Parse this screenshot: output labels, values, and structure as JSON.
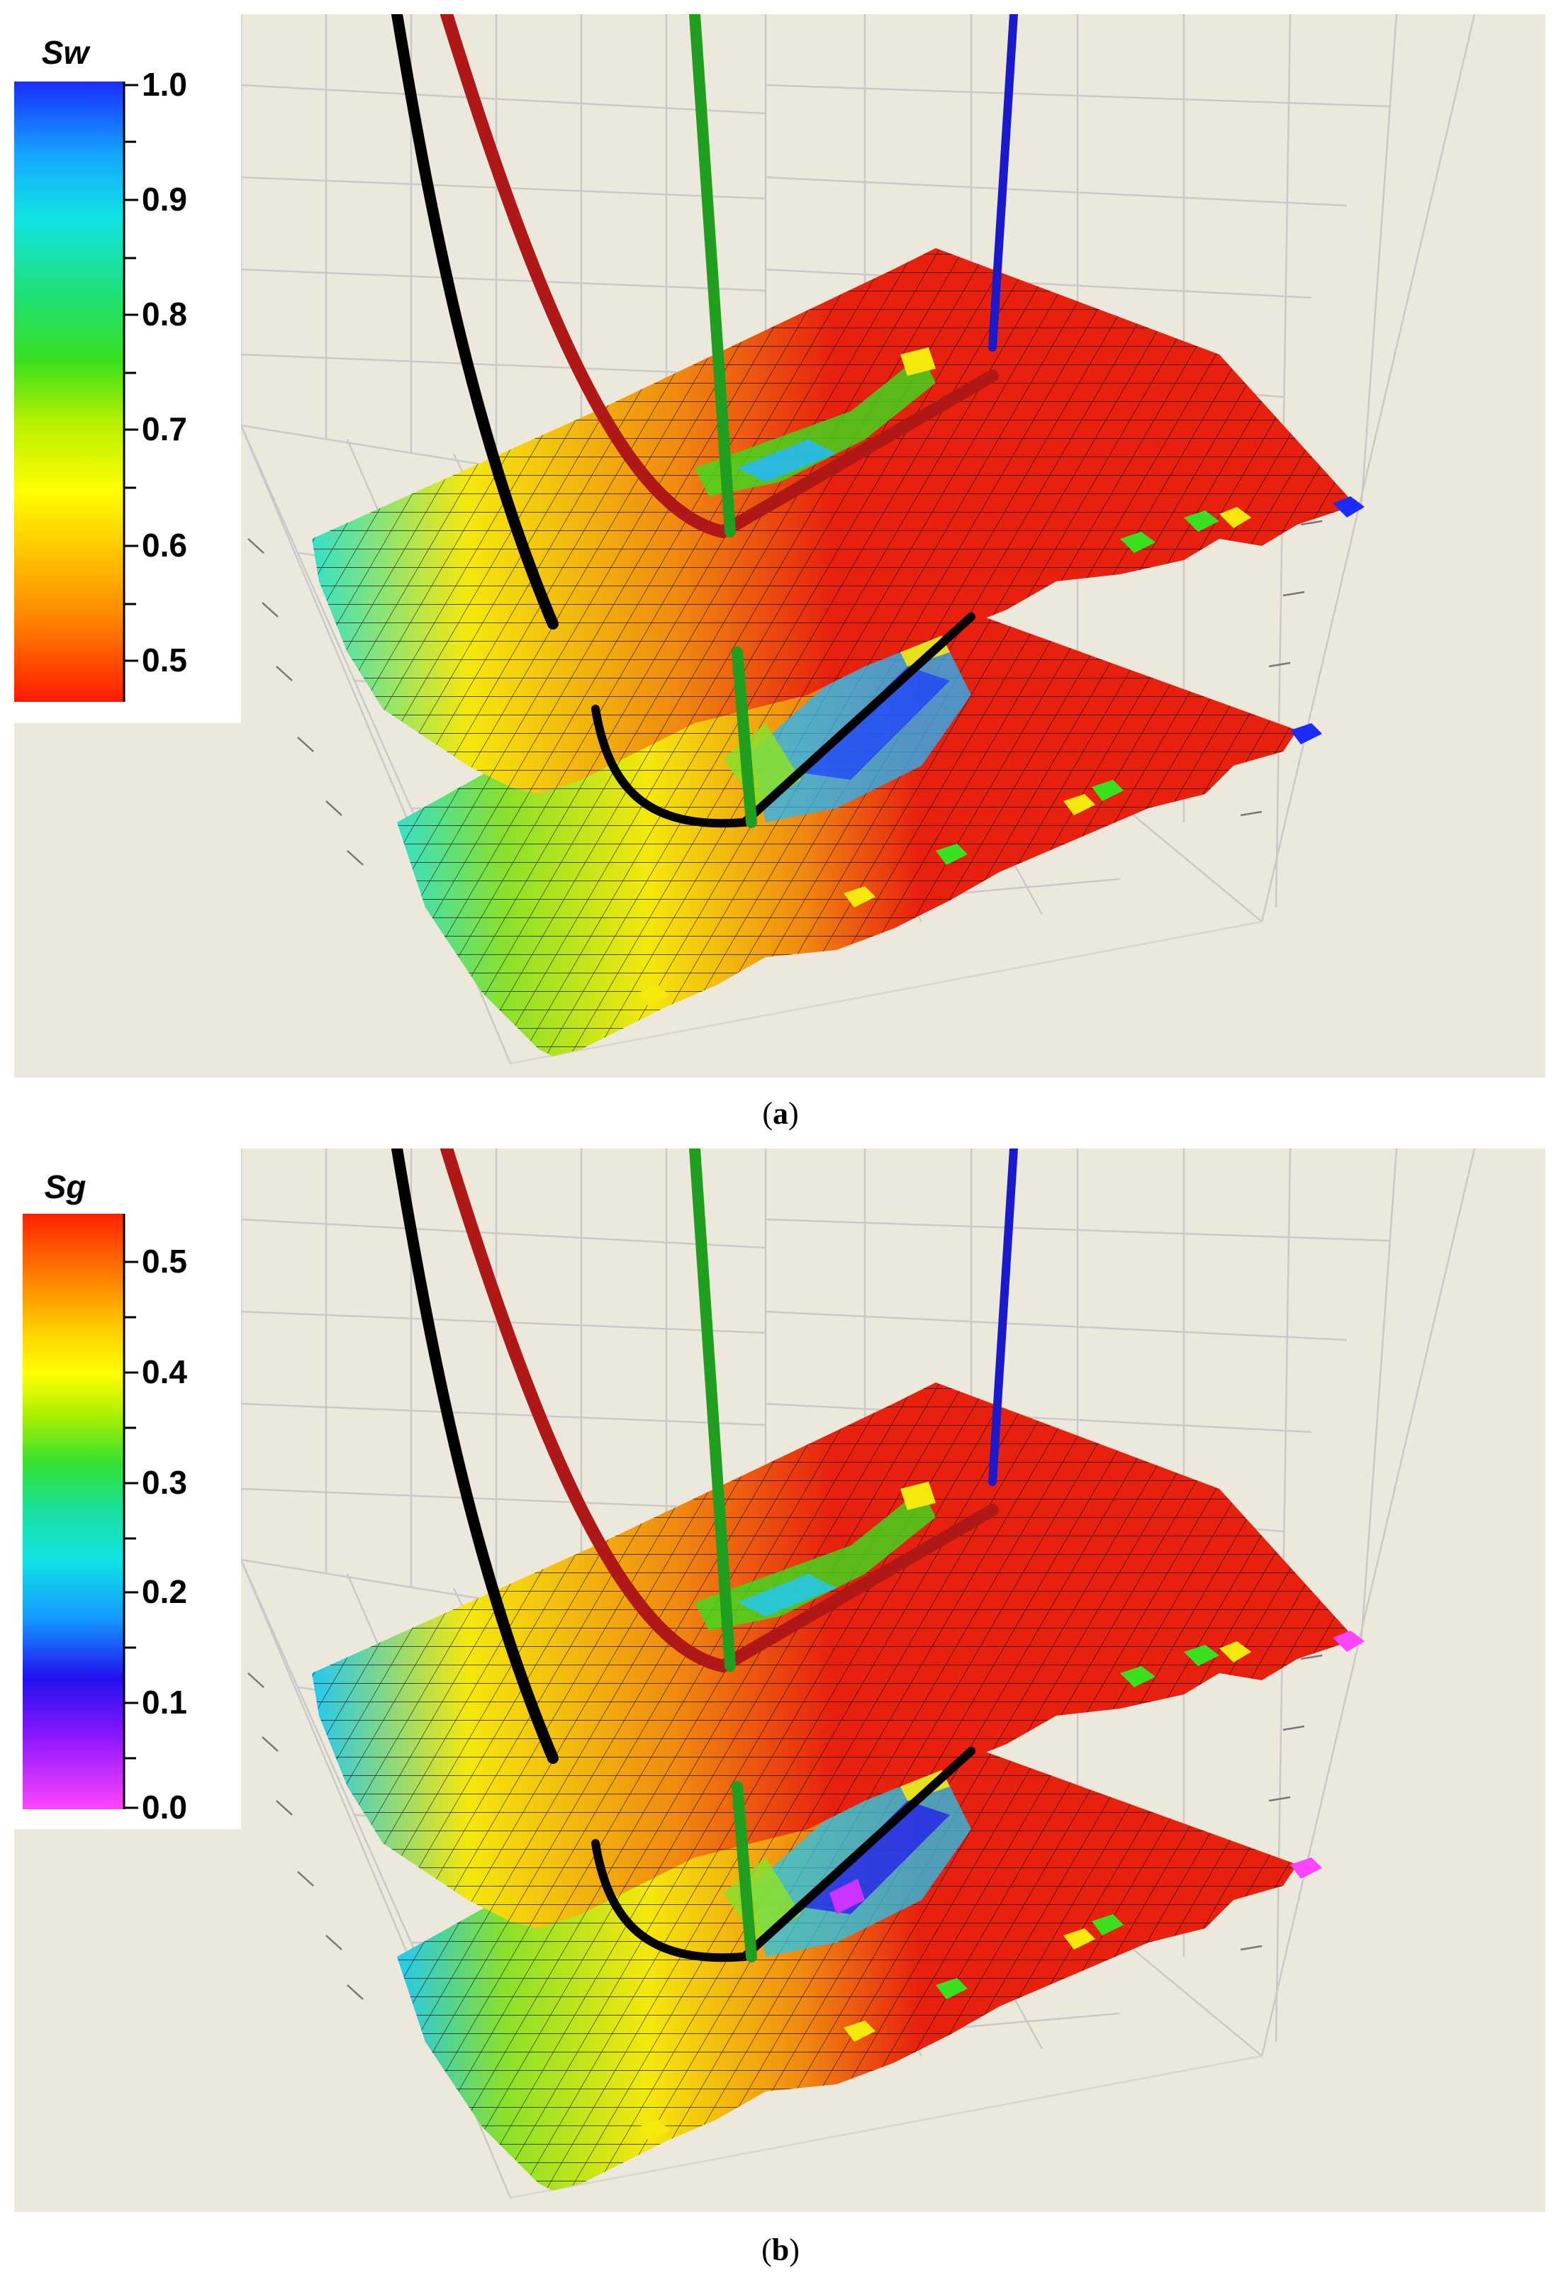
{
  "panels": [
    {
      "id": "a",
      "caption_letter": "a",
      "colorbar": {
        "title": "Sw",
        "ticks": [
          "1.0",
          "0.9",
          "0.8",
          "0.7",
          "0.6",
          "0.5"
        ],
        "gradient": [
          "#1a2cff",
          "#14a8ff",
          "#11e3e3",
          "#1ee07a",
          "#39e01e",
          "#b8f000",
          "#ffff00",
          "#ffc400",
          "#ff8a00",
          "#ff3a00",
          "#ff1a00"
        ]
      },
      "wells": [
        {
          "name": "black-well",
          "color": "#000000"
        },
        {
          "name": "red-well",
          "color": "#b01818"
        },
        {
          "name": "green-well",
          "color": "#1f9e1f"
        },
        {
          "name": "blue-well",
          "color": "#1a1acc"
        }
      ],
      "surface_colors": {
        "base": "#e8200e",
        "edge": "#35e0c8",
        "mid": "#f5e80c",
        "accent": "#2ab8ff"
      }
    },
    {
      "id": "b",
      "caption_letter": "b",
      "colorbar": {
        "title": "Sg",
        "ticks": [
          "0.5",
          "0.4",
          "0.3",
          "0.2",
          "0.1",
          "0.0"
        ],
        "gradient": [
          "#ff2200",
          "#ff7a00",
          "#ffd200",
          "#ffff00",
          "#a8f000",
          "#33e033",
          "#19e0a0",
          "#11e3e3",
          "#1499ff",
          "#2010ee",
          "#8e18ff",
          "#ff44ff"
        ]
      },
      "wells": [
        {
          "name": "black-well",
          "color": "#000000"
        },
        {
          "name": "red-well",
          "color": "#b01818"
        },
        {
          "name": "green-well",
          "color": "#1f9e1f"
        },
        {
          "name": "blue-well",
          "color": "#1a1acc"
        }
      ],
      "surface_colors": {
        "base": "#e8200e",
        "edge": "#22c8f0",
        "mid": "#f5e80c",
        "accent": "#8e18ff"
      }
    }
  ]
}
